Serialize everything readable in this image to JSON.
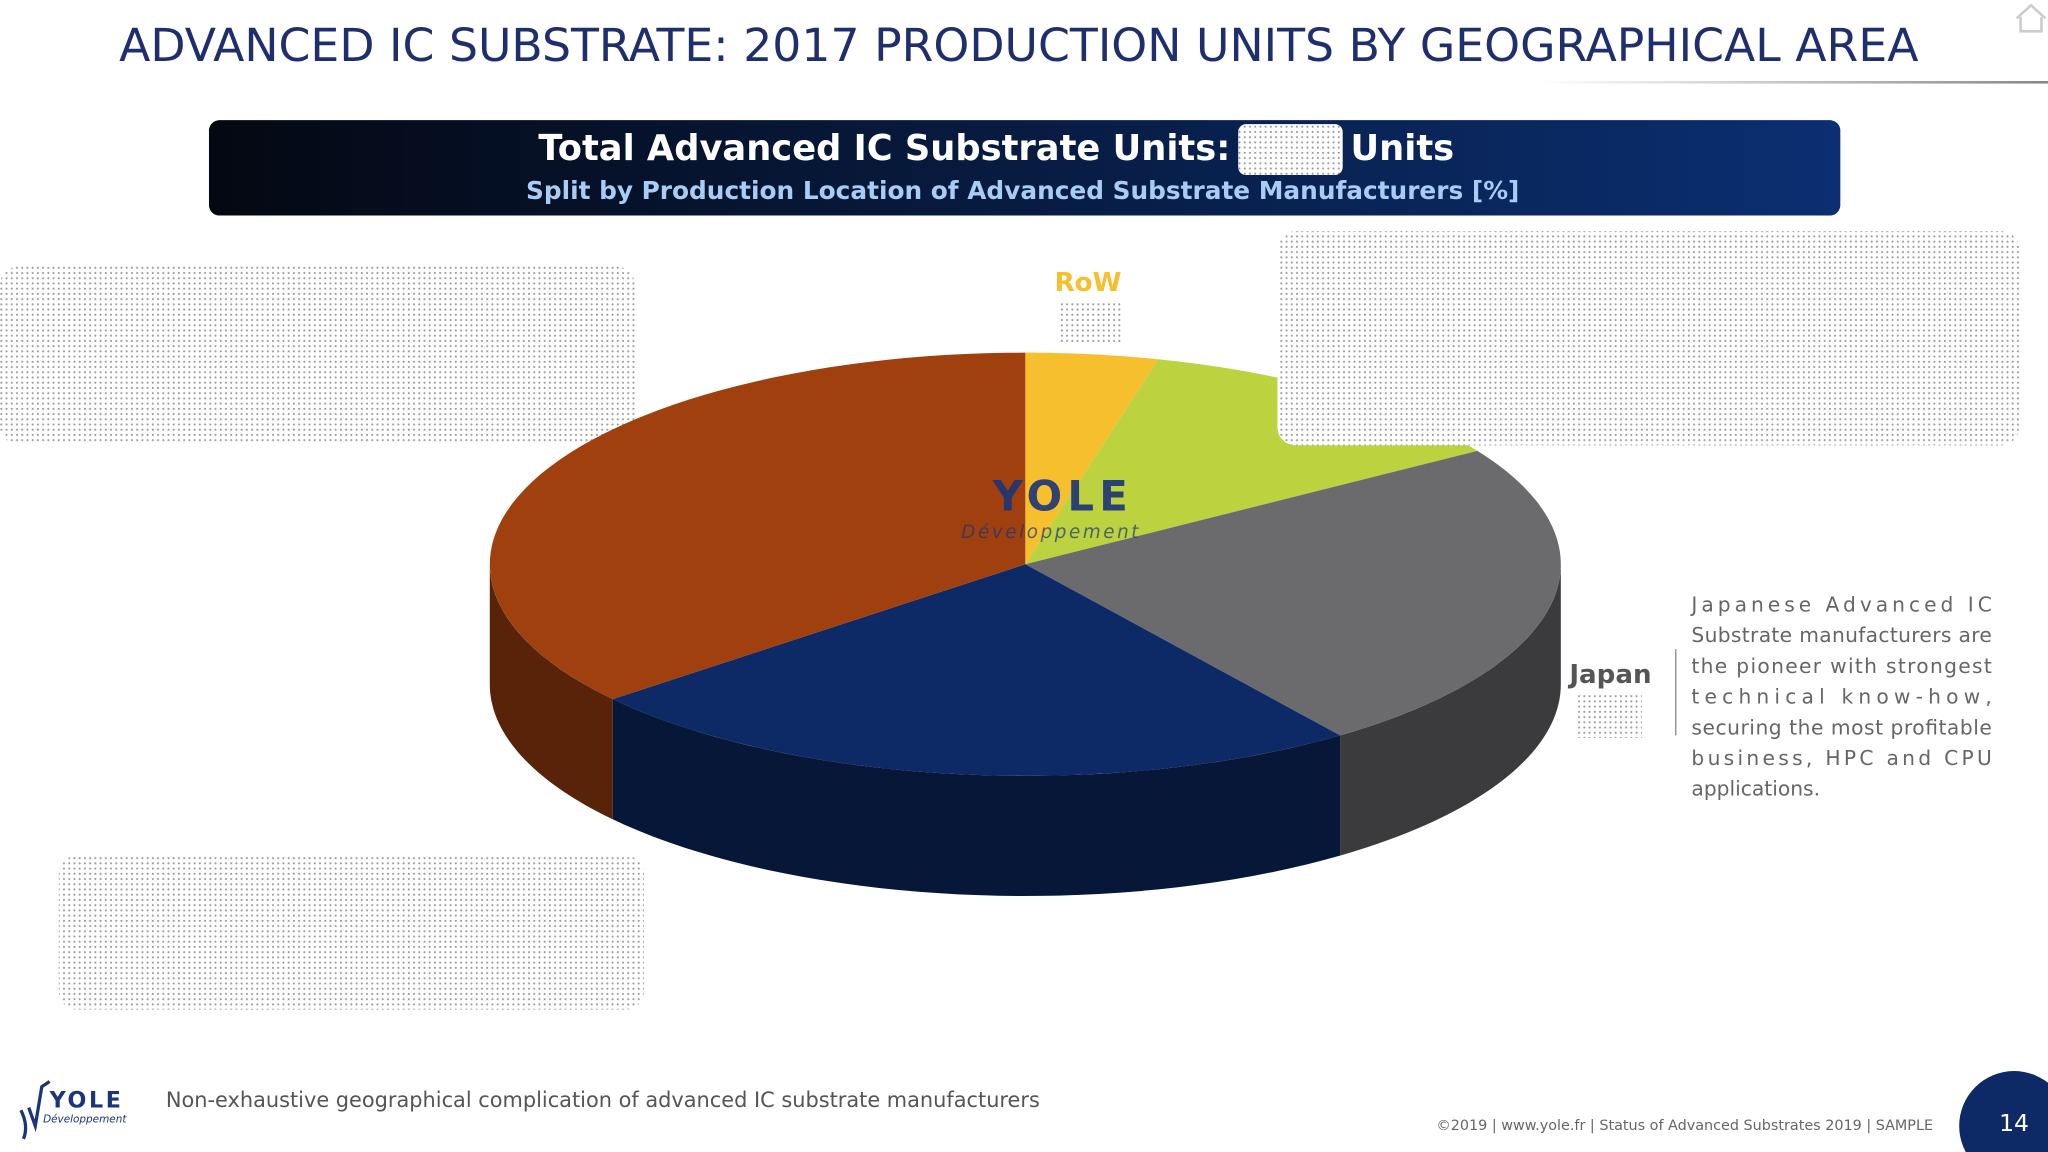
{
  "header": {
    "title": "ADVANCED IC SUBSTRATE: 2017 PRODUCTION UNITS BY GEOGRAPHICAL AREA"
  },
  "banner": {
    "total_label": "Total Advanced IC Substrate Units:",
    "units_label": "Units",
    "subtitle": "Split by Production Location of Advanced Substrate Manufacturers [%]"
  },
  "chart_data": {
    "type": "pie",
    "categories": [
      "RoW",
      null,
      "Japan",
      null,
      null
    ],
    "values": [
      4,
      12,
      24,
      24,
      36
    ],
    "colors": [
      "#f5bf2e",
      "#bcd23f",
      "#6b6b6e",
      "#0d2a66",
      "#a0400e"
    ]
  },
  "watermark": {
    "name": "YOLE",
    "sub": "Développement"
  },
  "note": {
    "lines": [
      "Japanese Advanced IC",
      "Substrate manufacturers are",
      "the pioneer with strongest",
      "technical know-how,",
      "securing the most profitable",
      "business, HPC and CPU",
      "applications."
    ]
  },
  "footer": {
    "logo_name": "YOLE",
    "logo_sub": "Développement",
    "caption": "Non-exhaustive geographical complication of advanced IC substrate manufacturers",
    "copyright": "©2019 | www.yole.fr | Status of Advanced Substrates 2019 | SAMPLE",
    "page_number": "14"
  }
}
